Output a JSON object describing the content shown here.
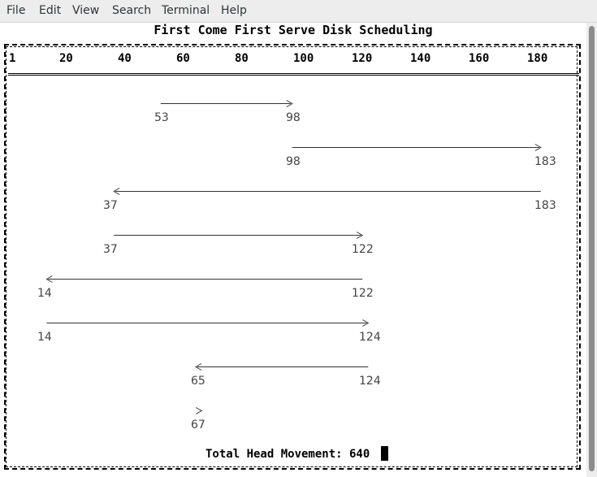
{
  "menu": {
    "items": [
      {
        "label": "File"
      },
      {
        "label": "Edit"
      },
      {
        "label": "View"
      },
      {
        "label": "Search"
      },
      {
        "label": "Terminal"
      },
      {
        "label": "Help"
      }
    ]
  },
  "terminal": {
    "title": "First Come First Serve Disk Scheduling",
    "scale_ticks": [
      "1",
      "20",
      "40",
      "60",
      "80",
      "100",
      "120",
      "140",
      "160",
      "180"
    ],
    "movements": [
      {
        "from": 53,
        "to": 98,
        "from_label": "53",
        "to_label": "98"
      },
      {
        "from": 98,
        "to": 183,
        "from_label": "98",
        "to_label": "183"
      },
      {
        "from": 183,
        "to": 37,
        "from_label": "37",
        "to_label": "183"
      },
      {
        "from": 37,
        "to": 122,
        "from_label": "37",
        "to_label": "122"
      },
      {
        "from": 122,
        "to": 14,
        "from_label": "14",
        "to_label": "122"
      },
      {
        "from": 14,
        "to": 124,
        "from_label": "14",
        "to_label": "124"
      },
      {
        "from": 124,
        "to": 65,
        "from_label": "65",
        "to_label": "124"
      },
      {
        "from": 65,
        "to": 67,
        "from_label": "67",
        "to_label": ""
      }
    ],
    "total_label": "Total Head Movement: 640"
  }
}
